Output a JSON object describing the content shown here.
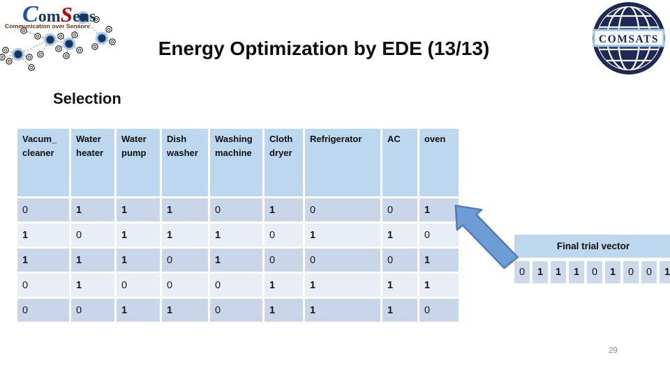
{
  "header": {
    "title": "Energy Optimization by EDE (13/13)"
  },
  "subtitle": "Selection",
  "logo_comsens": {
    "brand_c": "C",
    "brand_om": "om",
    "brand_s": "S",
    "brand_ens": "ens",
    "tagline": "Communication over Sensors"
  },
  "logo_comsats": {
    "label": "COMSATS"
  },
  "table": {
    "columns": [
      "Vacum_\ncleaner",
      "Water\nheater",
      "Water\npump",
      "Dish\nwasher",
      "Washing\nmachine",
      "Cloth\ndryer",
      "Refrigerator",
      "AC",
      "oven"
    ],
    "rows": [
      [
        0,
        1,
        1,
        1,
        0,
        1,
        0,
        0,
        1
      ],
      [
        1,
        0,
        1,
        1,
        1,
        0,
        1,
        1,
        0
      ],
      [
        1,
        1,
        1,
        0,
        1,
        0,
        0,
        0,
        1
      ],
      [
        0,
        1,
        0,
        0,
        0,
        1,
        1,
        1,
        1
      ],
      [
        0,
        0,
        1,
        1,
        0,
        1,
        1,
        1,
        0
      ]
    ]
  },
  "final_vector": {
    "label": "Final trial vector",
    "values": [
      0,
      1,
      1,
      1,
      0,
      1,
      0,
      0,
      1
    ]
  },
  "page_number": "29",
  "colors": {
    "header-bg": "#BDD7EE",
    "band-dark": "#C9D5E8",
    "band-light": "#E9EEF6",
    "vector-label-bg": "#BDD7EE",
    "vector-cell-bg": "#CBD9EB",
    "arrow-fill": "#6D9DD4",
    "arrow-stroke": "#4A7CB8",
    "brand-blue": "#2353A4",
    "brand-red": "#C00000",
    "navy": "#1E2A55"
  }
}
